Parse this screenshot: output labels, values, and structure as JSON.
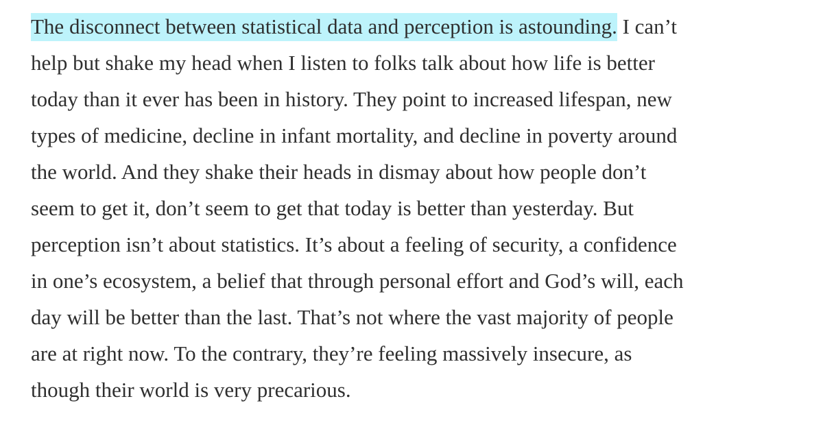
{
  "paragraph": {
    "highlighted": "The disconnect between statistical data and perception is astounding.",
    "lines": [
      "I can’t",
      "help but shake my head when I listen to folks talk about how life is better",
      "today than it ever has been in history. They point to increased lifespan, new",
      "types of medicine, decline in infant mortality, and decline in poverty around",
      "the world. And they shake their heads in dismay about how people don’t",
      "seem to get it, don’t seem to get that today is better than yesterday. But",
      "perception isn’t about statistics. It’s about a feeling of security, a confidence",
      "in one’s ecosystem, a belief that through personal effort and God’s will, each",
      "day will be better than the last. That’s not where the vast majority of people",
      "are at right now. To the contrary, they’re feeling massively insecure, as",
      "though their world is very precarious."
    ]
  }
}
